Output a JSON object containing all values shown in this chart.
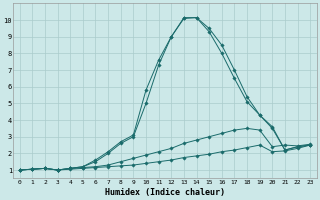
{
  "xlabel": "Humidex (Indice chaleur)",
  "bg_color": "#cce8e8",
  "grid_color": "#aacccc",
  "line_color": "#1a6b6b",
  "xlim": [
    -0.5,
    23.5
  ],
  "ylim": [
    0.5,
    11.0
  ],
  "yticks": [
    1,
    2,
    3,
    4,
    5,
    6,
    7,
    8,
    9,
    10
  ],
  "xticks": [
    0,
    1,
    2,
    3,
    4,
    5,
    6,
    7,
    8,
    9,
    10,
    11,
    12,
    13,
    14,
    15,
    16,
    17,
    18,
    19,
    20,
    21,
    22,
    23
  ],
  "series": [
    {
      "x": [
        0,
        1,
        2,
        3,
        3,
        4,
        5,
        6,
        7,
        8,
        9,
        10,
        11,
        12,
        13,
        14,
        15,
        16,
        17,
        18,
        19,
        20,
        21,
        22,
        23
      ],
      "y": [
        1.0,
        1.05,
        1.1,
        1.0,
        1.0,
        1.05,
        1.1,
        1.15,
        1.2,
        1.25,
        1.3,
        1.4,
        1.5,
        1.6,
        1.75,
        1.85,
        1.95,
        2.1,
        2.2,
        2.35,
        2.5,
        2.1,
        2.15,
        2.3,
        2.5
      ]
    },
    {
      "x": [
        0,
        1,
        2,
        3,
        3,
        4,
        5,
        6,
        7,
        8,
        9,
        10,
        11,
        12,
        13,
        14,
        15,
        16,
        17,
        18,
        19,
        20,
        21,
        22,
        23
      ],
      "y": [
        1.0,
        1.05,
        1.1,
        1.0,
        1.0,
        1.1,
        1.15,
        1.2,
        1.3,
        1.5,
        1.7,
        1.9,
        2.1,
        2.3,
        2.6,
        2.8,
        3.0,
        3.2,
        3.4,
        3.5,
        3.4,
        2.4,
        2.5,
        2.45,
        2.55
      ]
    },
    {
      "x": [
        0,
        1,
        2,
        3,
        3,
        4,
        5,
        6,
        7,
        8,
        9,
        10,
        11,
        12,
        13,
        14,
        15,
        16,
        17,
        18,
        19,
        20,
        21,
        22,
        23
      ],
      "y": [
        1.0,
        1.05,
        1.1,
        1.0,
        1.0,
        1.1,
        1.2,
        1.5,
        2.0,
        2.6,
        3.0,
        5.0,
        7.3,
        9.0,
        10.1,
        10.15,
        9.3,
        8.0,
        6.5,
        5.1,
        4.3,
        3.5,
        2.2,
        2.4,
        2.5
      ]
    },
    {
      "x": [
        0,
        1,
        2,
        3,
        3,
        4,
        5,
        6,
        7,
        8,
        9,
        10,
        11,
        12,
        13,
        14,
        15,
        16,
        17,
        18,
        19,
        20,
        21,
        22,
        23
      ],
      "y": [
        1.0,
        1.05,
        1.1,
        1.0,
        1.0,
        1.1,
        1.2,
        1.6,
        2.1,
        2.7,
        3.1,
        5.8,
        7.6,
        9.0,
        10.15,
        10.15,
        9.5,
        8.5,
        7.0,
        5.4,
        4.3,
        3.6,
        2.2,
        2.4,
        2.5
      ]
    }
  ]
}
